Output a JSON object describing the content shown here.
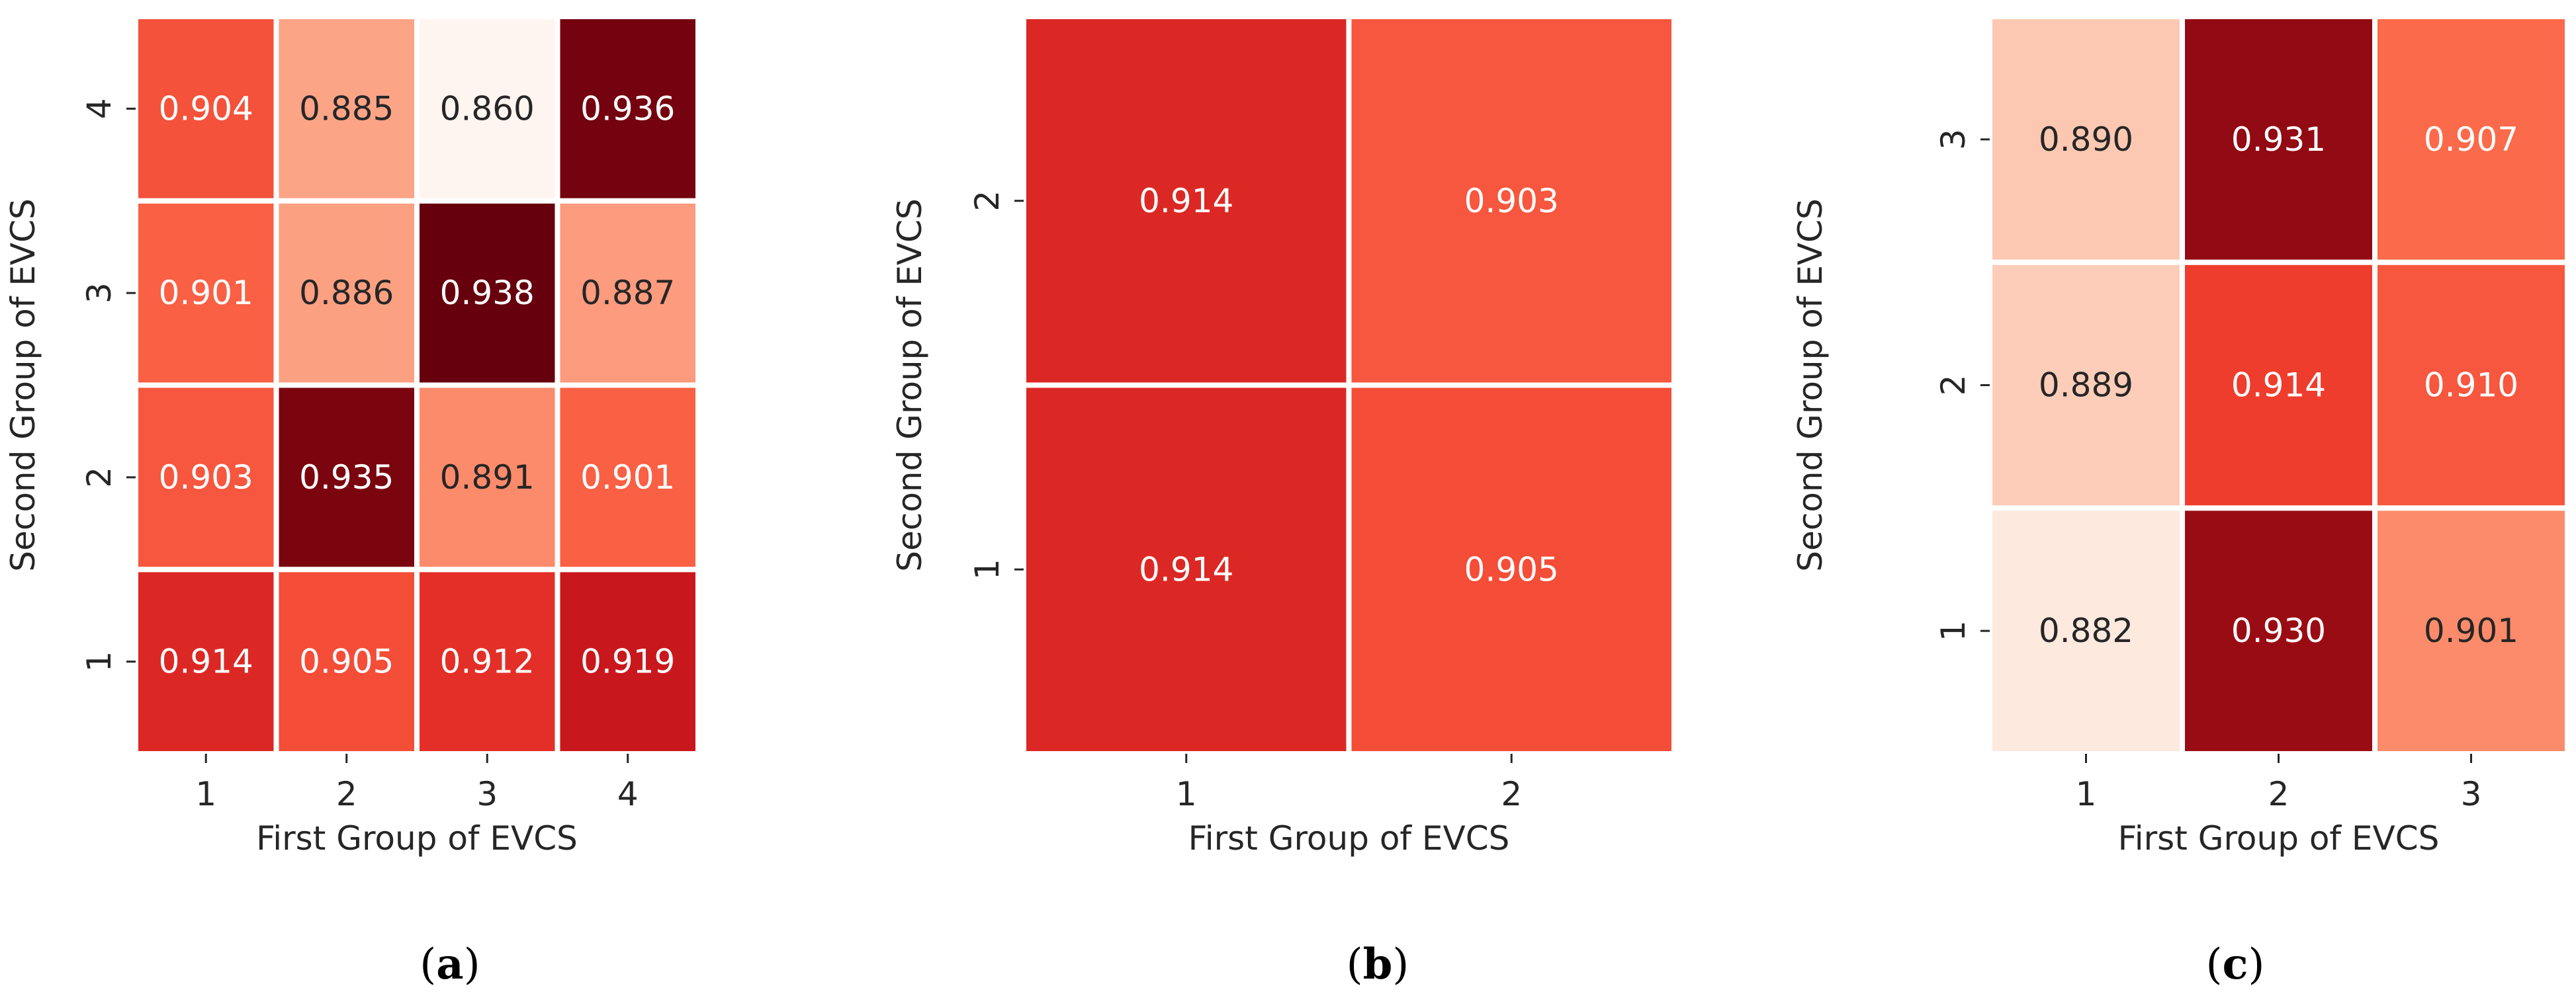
{
  "chart_data": [
    {
      "type": "heatmap",
      "panel_label": "(a)",
      "caption_letter": "a",
      "xlabel": "First Group of EVCS",
      "ylabel": "Second Group of EVCS",
      "x_categories": [
        "1",
        "2",
        "3",
        "4"
      ],
      "y_categories": [
        "1",
        "2",
        "3",
        "4"
      ],
      "y_order": "bottom-to-top",
      "values": [
        [
          0.914,
          0.905,
          0.912,
          0.919
        ],
        [
          0.903,
          0.935,
          0.891,
          0.901
        ],
        [
          0.901,
          0.886,
          0.938,
          0.887
        ],
        [
          0.904,
          0.885,
          0.86,
          0.936
        ]
      ],
      "colormap": "Reds",
      "value_range": [
        0.86,
        0.938
      ],
      "colorbar": false
    },
    {
      "type": "heatmap",
      "panel_label": "(b)",
      "caption_letter": "b",
      "xlabel": "First Group of EVCS",
      "ylabel": "Second Group of EVCS",
      "x_categories": [
        "1",
        "2"
      ],
      "y_categories": [
        "1",
        "2"
      ],
      "y_order": "bottom-to-top",
      "values": [
        [
          0.914,
          0.905
        ],
        [
          0.914,
          0.903
        ]
      ],
      "colormap": "Reds",
      "value_range": [
        0.86,
        0.938
      ],
      "colorbar": false
    },
    {
      "type": "heatmap",
      "panel_label": "(c)",
      "caption_letter": "c",
      "xlabel": "First Group of EVCS",
      "ylabel": "Second Group of EVCS",
      "x_categories": [
        "1",
        "2",
        "3"
      ],
      "y_categories": [
        "1",
        "2",
        "3"
      ],
      "y_order": "bottom-to-top",
      "values": [
        [
          0.882,
          0.93,
          0.901
        ],
        [
          0.889,
          0.914,
          0.91
        ],
        [
          0.89,
          0.931,
          0.907
        ]
      ],
      "colormap": "Reds",
      "value_range": [
        0.878,
        0.936
      ],
      "colorbar": false
    }
  ]
}
